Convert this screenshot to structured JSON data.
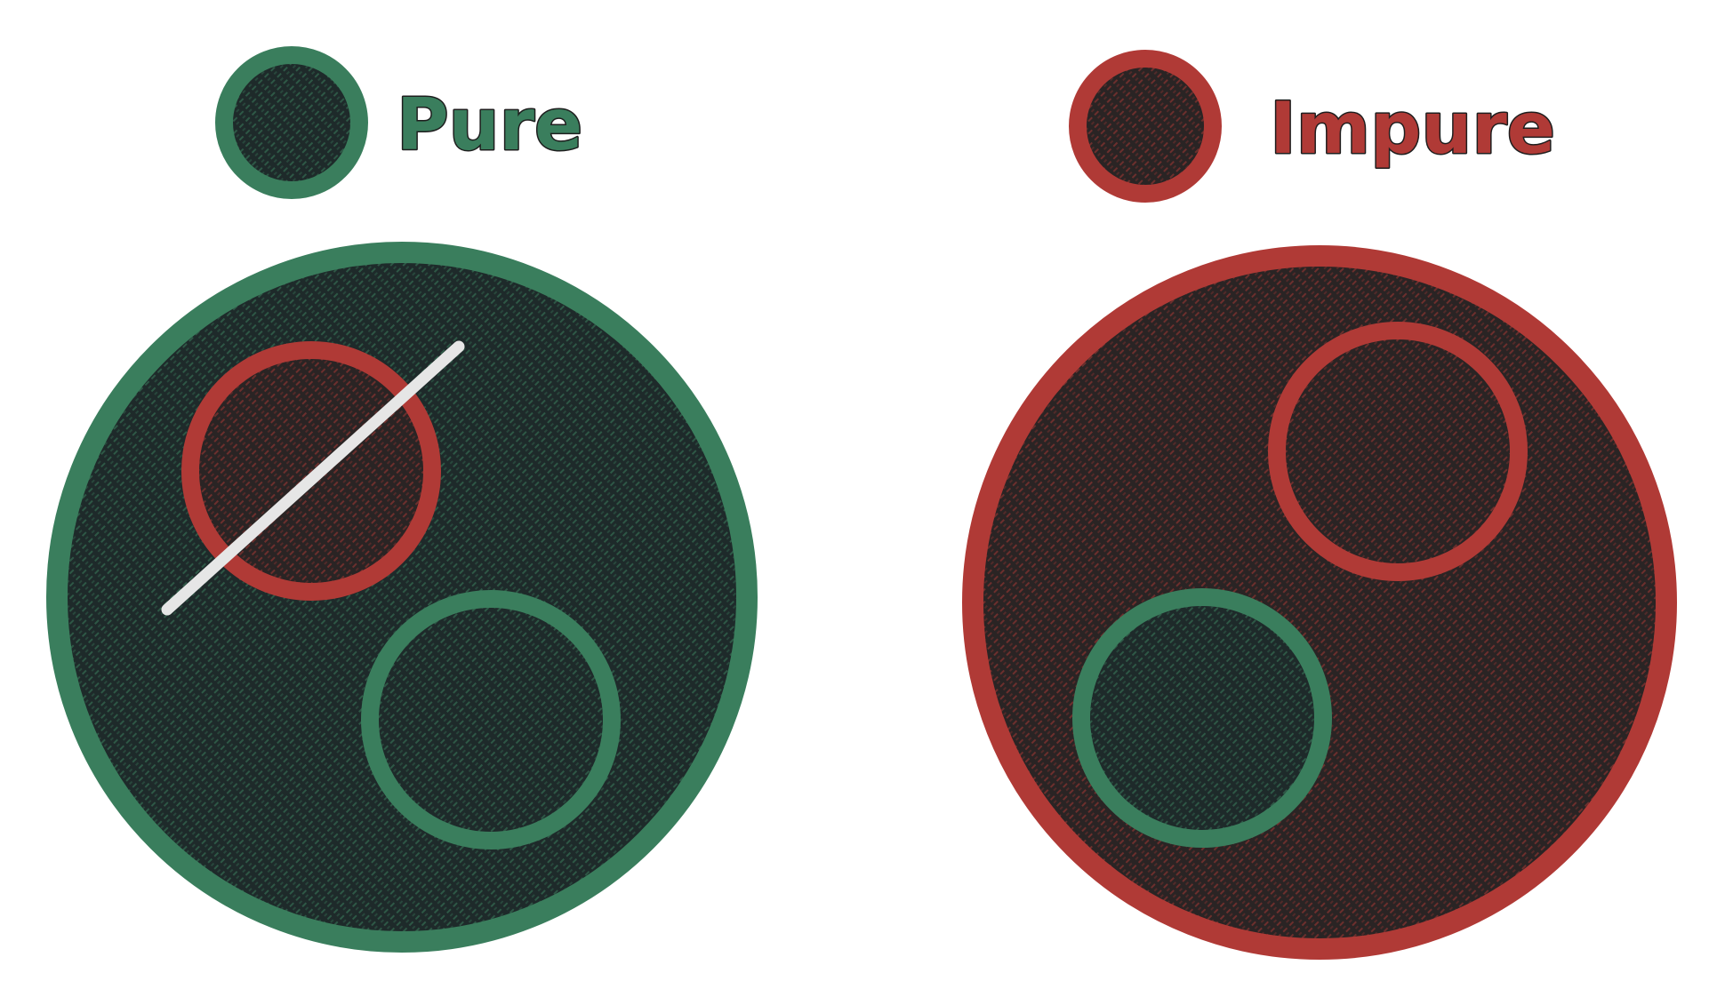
{
  "legend": {
    "pure": {
      "label": "Pure",
      "color": "#3a7e5d"
    },
    "impure": {
      "label": "Impure",
      "color": "#b03a36"
    }
  },
  "diagram": {
    "fill_color": "#1e2a2a",
    "left_group": {
      "outer": "pure",
      "inner": [
        "impure",
        "pure"
      ],
      "impure_child_crossed_out": true,
      "strike_color": "#e6e6e6"
    },
    "right_group": {
      "outer": "impure",
      "inner": [
        "impure",
        "pure"
      ]
    }
  }
}
